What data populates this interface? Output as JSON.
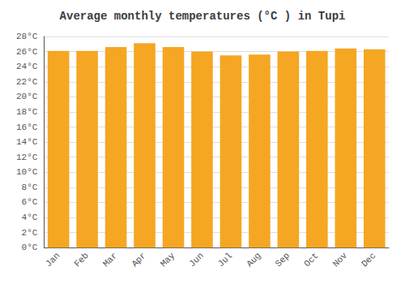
{
  "chart_data": {
    "type": "bar",
    "title": "Average monthly temperatures (°C ) in Tupi",
    "categories": [
      "Jan",
      "Feb",
      "Mar",
      "Apr",
      "May",
      "Jun",
      "Jul",
      "Aug",
      "Sep",
      "Oct",
      "Nov",
      "Dec"
    ],
    "values": [
      26.1,
      26.1,
      26.6,
      27.1,
      26.6,
      26.0,
      25.5,
      25.6,
      26.0,
      26.1,
      26.4,
      26.3
    ],
    "color": "#F5A623",
    "ylim": [
      0,
      28
    ],
    "yticks": [
      {
        "value": 0,
        "label": "0°C"
      },
      {
        "value": 2,
        "label": "2°C"
      },
      {
        "value": 4,
        "label": "4°C"
      },
      {
        "value": 6,
        "label": "6°C"
      },
      {
        "value": 8,
        "label": "8°C"
      },
      {
        "value": 10,
        "label": "10°C"
      },
      {
        "value": 12,
        "label": "12°C"
      },
      {
        "value": 14,
        "label": "14°C"
      },
      {
        "value": 16,
        "label": "16°C"
      },
      {
        "value": 18,
        "label": "18°C"
      },
      {
        "value": 20,
        "label": "20°C"
      },
      {
        "value": 22,
        "label": "22°C"
      },
      {
        "value": 24,
        "label": "24°C"
      },
      {
        "value": 26,
        "label": "26°C"
      },
      {
        "value": 28,
        "label": "28°C"
      }
    ],
    "grid": true
  }
}
